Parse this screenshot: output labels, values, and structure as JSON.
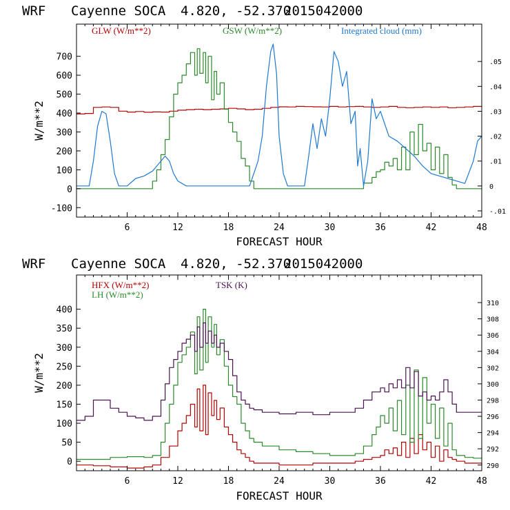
{
  "chart_data": [
    {
      "id": "top",
      "type": "line",
      "title_parts": [
        "WRF",
        "Cayenne SOCA",
        "4.820, -52.370",
        "2015042000"
      ],
      "xlabel": "FORECAST HOUR",
      "ylabel": "W/m**2",
      "xlim": [
        0,
        48
      ],
      "ylim": [
        -150,
        870
      ],
      "x_ticks": [
        6,
        12,
        18,
        24,
        30,
        36,
        42,
        48
      ],
      "x_tick_labels": [
        "6",
        "12",
        "18",
        "24",
        "30",
        "36",
        "42",
        "48"
      ],
      "y_ticks": [
        -100,
        0,
        100,
        200,
        300,
        400,
        500,
        600,
        700
      ],
      "y_tick_labels": [
        "-100",
        "0",
        "100",
        "200",
        "300",
        "400",
        "500",
        "600",
        "700"
      ],
      "y2lim": [
        -0.0125,
        0.065
      ],
      "y2_ticks": [
        -0.01,
        0,
        0.01,
        0.02,
        0.03,
        0.04,
        0.05
      ],
      "y2_tick_labels": [
        "-.01",
        "0",
        ".01",
        ".02",
        ".03",
        ".04",
        ".05"
      ],
      "series": [
        {
          "name": "GLW (W/m**2)",
          "color": "#b40000",
          "axis": "left",
          "step": true,
          "x": [
            0,
            1,
            2,
            3,
            4,
            5,
            6,
            7,
            8,
            9,
            10,
            11,
            12,
            13,
            14,
            15,
            16,
            17,
            18,
            19,
            20,
            21,
            22,
            23,
            24,
            25,
            26,
            27,
            28,
            29,
            30,
            31,
            32,
            33,
            34,
            35,
            36,
            37,
            38,
            39,
            40,
            41,
            42,
            43,
            44,
            45,
            46,
            47,
            48
          ],
          "y": [
            395,
            398,
            430,
            432,
            430,
            410,
            405,
            408,
            404,
            406,
            405,
            410,
            415,
            418,
            420,
            418,
            420,
            422,
            425,
            422,
            418,
            420,
            425,
            430,
            433,
            432,
            435,
            434,
            433,
            432,
            435,
            432,
            434,
            435,
            432,
            430,
            432,
            435,
            430,
            428,
            430,
            432,
            430,
            432,
            428,
            430,
            432,
            435,
            432
          ]
        },
        {
          "name": "GSW (W/m**2)",
          "color": "#2a8a2a",
          "axis": "left",
          "step": true,
          "x": [
            0,
            8,
            9,
            9.5,
            10,
            10.5,
            11,
            11.5,
            12,
            12.5,
            13,
            13.5,
            14,
            14.3,
            14.6,
            15,
            15.3,
            15.6,
            16,
            16.3,
            16.6,
            17,
            17.5,
            18,
            18.5,
            19,
            19.5,
            20,
            20.5,
            21,
            22,
            33,
            34,
            35,
            35.5,
            36,
            36.5,
            37,
            37.5,
            38,
            38.5,
            39,
            39.5,
            40,
            40.5,
            41,
            41.5,
            42,
            42.5,
            43,
            43.5,
            44,
            44.5,
            45,
            48
          ],
          "y": [
            0,
            0,
            40,
            100,
            180,
            260,
            380,
            500,
            560,
            600,
            660,
            720,
            600,
            740,
            610,
            720,
            560,
            700,
            470,
            620,
            500,
            560,
            420,
            350,
            300,
            250,
            160,
            120,
            40,
            0,
            0,
            0,
            30,
            60,
            90,
            100,
            140,
            120,
            160,
            100,
            220,
            100,
            300,
            180,
            340,
            200,
            240,
            100,
            220,
            80,
            180,
            60,
            20,
            0,
            0
          ]
        },
        {
          "name": "Integrated cloud (mm)",
          "color": "#1e78d2",
          "axis": "right",
          "step": false,
          "x": [
            0,
            1.5,
            2,
            2.5,
            3,
            3.5,
            4,
            4.5,
            5,
            6,
            7,
            8,
            9,
            10,
            10.5,
            11,
            11.5,
            12,
            13,
            20,
            20.5,
            21,
            21.5,
            22,
            22.5,
            23,
            23.3,
            23.7,
            24,
            24.5,
            25,
            26,
            27,
            27.5,
            28,
            28.5,
            29,
            29.5,
            30,
            30.5,
            31,
            31.5,
            32,
            32.5,
            33,
            33.3,
            33.6,
            34,
            34.5,
            35,
            35.5,
            36,
            36.5,
            37,
            38,
            39,
            40,
            41,
            42,
            43,
            44,
            45,
            46,
            47,
            47.5,
            48
          ],
          "y": [
            0,
            0,
            0.01,
            0.024,
            0.03,
            0.029,
            0.018,
            0.005,
            0,
            0,
            0.003,
            0.004,
            0.006,
            0.01,
            0.012,
            0.01,
            0.005,
            0.002,
            0,
            0,
            0,
            0.005,
            0.01,
            0.02,
            0.04,
            0.054,
            0.057,
            0.045,
            0.02,
            0.005,
            0,
            0,
            0,
            0.012,
            0.025,
            0.015,
            0.027,
            0.02,
            0.035,
            0.054,
            0.05,
            0.04,
            0.046,
            0.025,
            0.03,
            0.008,
            0.015,
            0,
            0.01,
            0.035,
            0.027,
            0.03,
            0.025,
            0.02,
            0.018,
            0.015,
            0.012,
            0.008,
            0.005,
            0.004,
            0.003,
            0.002,
            0.001,
            0.01,
            0.018,
            0.02
          ]
        }
      ]
    },
    {
      "id": "bottom",
      "type": "line",
      "title_parts": [
        "WRF",
        "Cayenne SOCA",
        "4.820, -52.370",
        "2015042000"
      ],
      "xlabel": "FORECAST HOUR",
      "ylabel": "W/m**2",
      "xlim": [
        0,
        48
      ],
      "ylim": [
        -25,
        490
      ],
      "x_ticks": [
        6,
        12,
        18,
        24,
        30,
        36,
        42,
        48
      ],
      "x_tick_labels": [
        "6",
        "12",
        "18",
        "24",
        "30",
        "36",
        "42",
        "48"
      ],
      "y_ticks": [
        0,
        50,
        100,
        150,
        200,
        250,
        300,
        350,
        400
      ],
      "y_tick_labels": [
        "0",
        "50",
        "100",
        "150",
        "200",
        "250",
        "300",
        "350",
        "400"
      ],
      "y2lim": [
        289.3,
        313.4
      ],
      "y2_ticks": [
        290,
        292,
        294,
        296,
        298,
        300,
        302,
        304,
        306,
        308,
        310
      ],
      "y2_tick_labels": [
        "290",
        "292",
        "294",
        "296",
        "298",
        "300",
        "302",
        "304",
        "306",
        "308",
        "310"
      ],
      "series": [
        {
          "name": "HFX (W/m**2)",
          "color": "#b40000",
          "axis": "left",
          "step": true,
          "x": [
            0,
            2,
            4,
            6,
            8,
            9,
            10,
            11,
            12,
            12.5,
            13,
            13.5,
            14,
            14.3,
            14.6,
            15,
            15.3,
            15.6,
            16,
            16.3,
            16.6,
            17,
            17.5,
            18,
            18.5,
            19,
            19.5,
            20,
            20.5,
            21,
            22,
            24,
            28,
            32,
            33,
            34,
            35,
            36,
            36.5,
            37,
            37.5,
            38,
            38.5,
            39,
            39.5,
            40,
            40.5,
            41,
            41.5,
            42,
            42.5,
            43,
            43.5,
            44,
            44.5,
            45,
            46,
            48
          ],
          "y": [
            -10,
            -12,
            -15,
            -18,
            -15,
            -10,
            10,
            40,
            80,
            100,
            120,
            150,
            90,
            190,
            80,
            200,
            70,
            180,
            120,
            160,
            110,
            140,
            90,
            70,
            50,
            30,
            20,
            10,
            0,
            -5,
            -5,
            -10,
            -5,
            -5,
            0,
            5,
            10,
            15,
            30,
            20,
            35,
            15,
            50,
            10,
            60,
            20,
            70,
            30,
            50,
            10,
            40,
            0,
            30,
            10,
            5,
            0,
            -5,
            -10
          ]
        },
        {
          "name": "LH (W/m**2)",
          "color": "#2a8a2a",
          "axis": "left",
          "step": true,
          "x": [
            0,
            2,
            4,
            6,
            8,
            9,
            10,
            10.5,
            11,
            11.5,
            12,
            12.5,
            13,
            13.5,
            14,
            14.3,
            14.6,
            15,
            15.3,
            15.6,
            16,
            16.3,
            16.6,
            17,
            17.5,
            18,
            18.5,
            19,
            19.5,
            20,
            20.5,
            21,
            22,
            24,
            26,
            28,
            30,
            32,
            33,
            34,
            35,
            35.5,
            36,
            36.5,
            37,
            37.5,
            38,
            38.5,
            39,
            39.5,
            40,
            40.5,
            41,
            41.5,
            42,
            42.5,
            43,
            43.5,
            44,
            44.5,
            45,
            46,
            47,
            48
          ],
          "y": [
            5,
            5,
            10,
            12,
            10,
            15,
            50,
            100,
            150,
            200,
            260,
            280,
            300,
            340,
            230,
            380,
            240,
            400,
            260,
            380,
            300,
            360,
            280,
            320,
            250,
            200,
            170,
            150,
            100,
            80,
            60,
            50,
            40,
            30,
            25,
            20,
            15,
            15,
            20,
            40,
            70,
            90,
            120,
            100,
            140,
            80,
            160,
            70,
            200,
            50,
            240,
            60,
            220,
            100,
            150,
            60,
            140,
            40,
            100,
            30,
            15,
            10,
            8,
            10
          ]
        },
        {
          "name": "TSK (K)",
          "color": "#4a1050",
          "axis": "right",
          "step": true,
          "x": [
            0,
            1,
            2,
            3,
            4,
            5,
            6,
            7,
            8,
            9,
            10,
            10.5,
            11,
            11.5,
            12,
            12.5,
            13,
            13.5,
            14,
            14.3,
            14.6,
            15,
            15.3,
            15.6,
            16,
            16.3,
            16.6,
            17,
            17.5,
            18,
            18.5,
            19,
            19.5,
            20,
            20.5,
            21,
            22,
            24,
            26,
            28,
            30,
            32,
            33,
            34,
            35,
            36,
            36.5,
            37,
            37.5,
            38,
            38.5,
            39,
            39.5,
            40,
            40.5,
            41,
            41.5,
            42,
            42.5,
            43,
            43.5,
            44,
            44.5,
            45,
            46,
            48
          ],
          "y": [
            295.5,
            296,
            298,
            298,
            297,
            296.5,
            296,
            295.8,
            295.5,
            296,
            298,
            300,
            302,
            303,
            304,
            305,
            305.5,
            306,
            304,
            307,
            304.5,
            307.5,
            305,
            306.5,
            305,
            306,
            304.5,
            305,
            304,
            303,
            301,
            299,
            298,
            297.5,
            297,
            296.8,
            296.5,
            296.3,
            296.5,
            296.2,
            296.5,
            296.5,
            297,
            298,
            299,
            299.5,
            299,
            300,
            299.5,
            300.5,
            299.5,
            302,
            299.5,
            301.5,
            298.5,
            299,
            298,
            298.5,
            298,
            299,
            300.5,
            299,
            297.5,
            296.5,
            296.5,
            296.5
          ]
        }
      ]
    }
  ]
}
